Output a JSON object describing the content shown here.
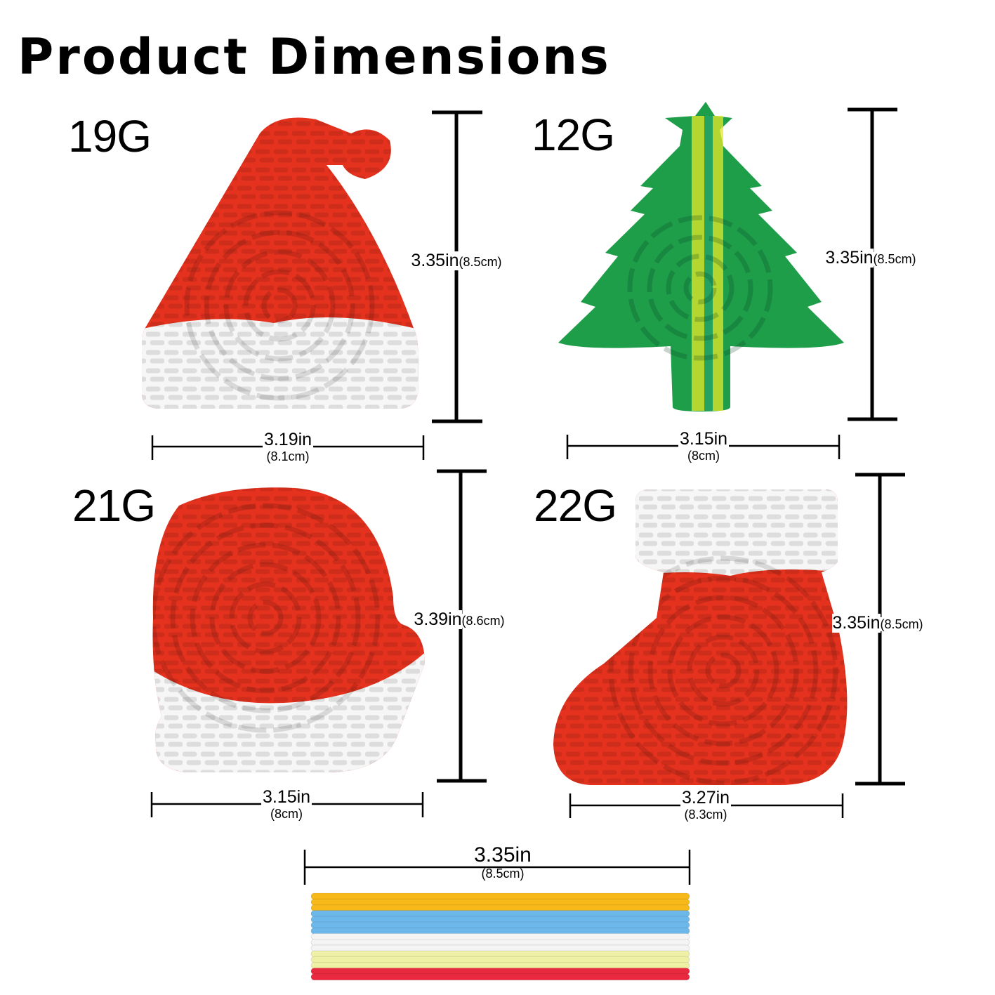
{
  "title": "Product Dimensions",
  "products": [
    {
      "weight": "19G",
      "shape": "santa-hat",
      "height_in": "3.35in",
      "height_cm": "(8.5cm)",
      "width_in": "3.19in",
      "width_cm": "(8.1cm)"
    },
    {
      "weight": "12G",
      "shape": "christmas-tree",
      "height_in": "3.35in",
      "height_cm": "(8.5cm)",
      "width_in": "3.15in",
      "width_cm": "(8cm)"
    },
    {
      "weight": "21G",
      "shape": "mitten",
      "height_in": "3.39in",
      "height_cm": "(8.6cm)",
      "width_in": "3.15in",
      "width_cm": "(8cm)"
    },
    {
      "weight": "22G",
      "shape": "stocking",
      "height_in": "3.35in",
      "height_cm": "(8.5cm)",
      "width_in": "3.27in",
      "width_cm": "(8.3cm)"
    }
  ],
  "bands": {
    "width_in": "3.35in",
    "width_cm": "(8.5cm)",
    "colors": [
      "#f7b81a",
      "#f7b81a",
      "#f7b81a",
      "#6db8ea",
      "#6db8ea",
      "#6db8ea",
      "#6db8ea",
      "#f4f4f4",
      "#f4f4f4",
      "#f4f4f4",
      "#eef0a6",
      "#eef0a6",
      "#eef0a6",
      "#e8293f",
      "#e8293f"
    ]
  },
  "colors": {
    "red": "#e5321e",
    "white": "#f6f6f6",
    "green": "#1f9e4a",
    "yellow": "#e6e82a"
  }
}
